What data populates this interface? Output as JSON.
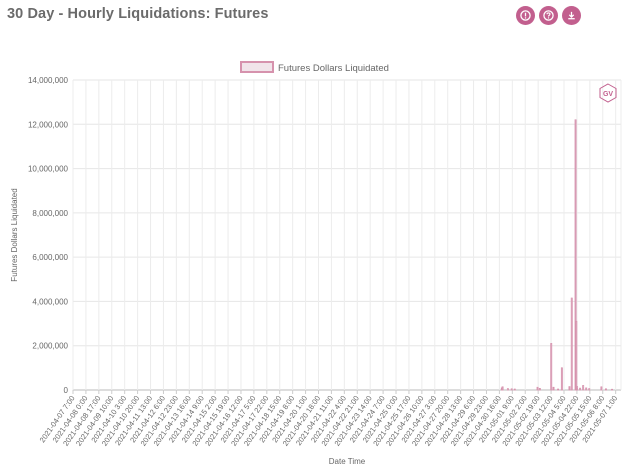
{
  "page": {
    "title": "30 Day - Hourly Liquidations: Futures",
    "buttons": [
      {
        "name": "info",
        "icon": "info-circle-icon"
      },
      {
        "name": "help",
        "icon": "question-circle-icon"
      },
      {
        "name": "download",
        "icon": "download-icon"
      }
    ],
    "watermark_icon": "gv-logo-icon",
    "accent_color": "#c25f8e"
  },
  "chart_data": {
    "type": "bar",
    "title": "",
    "xlabel": "Date Time",
    "ylabel": "Futures Dollars Liquidated",
    "ylim": [
      0,
      14000000
    ],
    "yticks": [
      0,
      2000000,
      4000000,
      6000000,
      8000000,
      10000000,
      12000000,
      14000000
    ],
    "ytick_labels": [
      "0",
      "2,000,000",
      "4,000,000",
      "6,000,000",
      "8,000,000",
      "10,000,000",
      "12,000,000",
      "14,000,000"
    ],
    "grid": true,
    "legend": {
      "position": "top-center",
      "entries": [
        "Futures Dollars Liquidated"
      ]
    },
    "bar_color": "#d692ad",
    "bar_fill": "#f1e4ea",
    "x_tick_labels": [
      "2021-04-07 7:00",
      "2021-04-08 0:00",
      "2021-04-08 17:00",
      "2021-04-09 10:00",
      "2021-04-10 3:00",
      "2021-04-10 20:00",
      "2021-04-11 13:00",
      "2021-04-12 6:00",
      "2021-04-12 23:00",
      "2021-04-13 16:00",
      "2021-04-14 9:00",
      "2021-04-15 2:00",
      "2021-04-15 19:00",
      "2021-04-16 12:00",
      "2021-04-17 5:00",
      "2021-04-17 22:00",
      "2021-04-18 15:00",
      "2021-04-19 8:00",
      "2021-04-20 1:00",
      "2021-04-20 18:00",
      "2021-04-21 11:00",
      "2021-04-22 4:00",
      "2021-04-22 21:00",
      "2021-04-23 14:00",
      "2021-04-24 7:00",
      "2021-04-25 0:00",
      "2021-04-25 17:00",
      "2021-04-26 10:00",
      "2021-04-27 3:00",
      "2021-04-27 20:00",
      "2021-04-28 13:00",
      "2021-04-29 6:00",
      "2021-04-29 23:00",
      "2021-04-30 16:00",
      "2021-05-01 9:00",
      "2021-05-02 2:00",
      "2021-05-02 19:00",
      "2021-05-03 12:00",
      "2021-05-04 5:00",
      "2021-05-04 22:00",
      "2021-05-05 15:00",
      "2021-05-06 8:00",
      "2021-05-07 1:00"
    ],
    "x_start": "2021-04-07 7:00",
    "x_end": "2021-05-07 8:00",
    "bars": [
      {
        "x": "2021-04-30 19:00",
        "value": 90000
      },
      {
        "x": "2021-04-30 20:00",
        "value": 140000
      },
      {
        "x": "2021-05-01 3:00",
        "value": 60000
      },
      {
        "x": "2021-05-01 8:00",
        "value": 50000
      },
      {
        "x": "2021-05-01 12:00",
        "value": 40000
      },
      {
        "x": "2021-05-02 18:00",
        "value": 120000
      },
      {
        "x": "2021-05-02 21:00",
        "value": 70000
      },
      {
        "x": "2021-05-03 12:00",
        "value": 2100000
      },
      {
        "x": "2021-05-03 15:00",
        "value": 120000
      },
      {
        "x": "2021-05-03 21:00",
        "value": 40000
      },
      {
        "x": "2021-05-04 2:00",
        "value": 1000000
      },
      {
        "x": "2021-05-04 12:00",
        "value": 150000
      },
      {
        "x": "2021-05-04 15:00",
        "value": 4150000
      },
      {
        "x": "2021-05-04 20:00",
        "value": 12200000
      },
      {
        "x": "2021-05-04 21:00",
        "value": 3100000
      },
      {
        "x": "2021-05-04 22:00",
        "value": 150000
      },
      {
        "x": "2021-05-05 2:00",
        "value": 80000
      },
      {
        "x": "2021-05-05 6:00",
        "value": 200000
      },
      {
        "x": "2021-05-05 10:00",
        "value": 90000
      },
      {
        "x": "2021-05-05 14:00",
        "value": 60000
      },
      {
        "x": "2021-05-06 6:00",
        "value": 140000
      },
      {
        "x": "2021-05-06 12:00",
        "value": 50000
      },
      {
        "x": "2021-05-06 20:00",
        "value": 30000
      }
    ]
  }
}
